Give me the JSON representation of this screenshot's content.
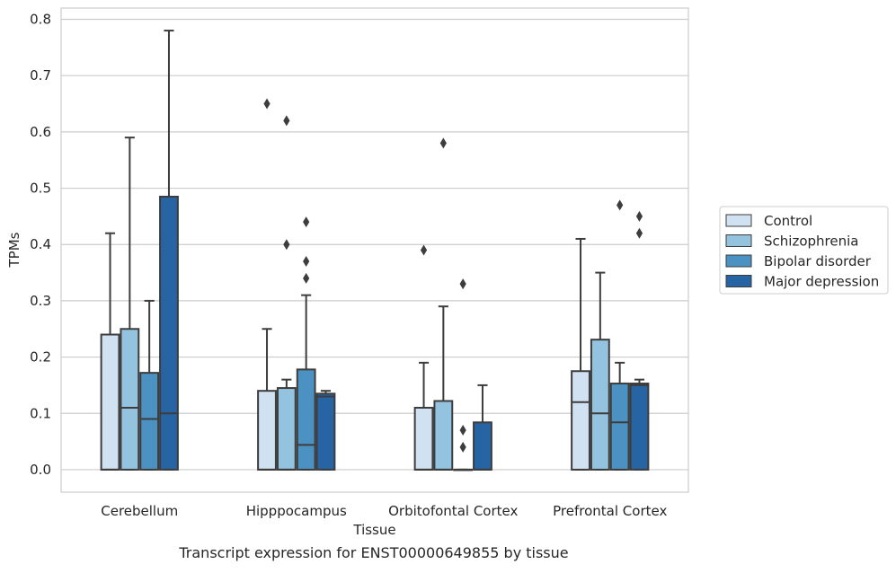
{
  "chart_data": {
    "type": "boxplot",
    "xlabel": "Tissue",
    "ylabel": "TPMs",
    "caption": "Transcript expression for ENST00000649855 by tissue",
    "ylim": [
      -0.04,
      0.82
    ],
    "yticks": [
      "0.0",
      "0.1",
      "0.2",
      "0.3",
      "0.4",
      "0.5",
      "0.6",
      "0.7",
      "0.8"
    ],
    "grid": true,
    "legend_position": "right",
    "categories": [
      "Cerebellum",
      "Hipppocampus",
      "Orbitofontal Cortex",
      "Prefrontal Cortex"
    ],
    "series": [
      {
        "name": "Control",
        "color": "#d0e1f1",
        "boxes": [
          {
            "q1": 0,
            "median": 0,
            "q3": 0.24,
            "whisker_low": 0,
            "whisker_high": 0.42,
            "outliers": []
          },
          {
            "q1": 0,
            "median": 0,
            "q3": 0.14,
            "whisker_low": 0,
            "whisker_high": 0.25,
            "outliers": [
              0.65
            ]
          },
          {
            "q1": 0,
            "median": 0,
            "q3": 0.11,
            "whisker_low": 0,
            "whisker_high": 0.19,
            "outliers": [
              0.39
            ]
          },
          {
            "q1": 0,
            "median": 0.12,
            "q3": 0.175,
            "whisker_low": 0,
            "whisker_high": 0.41,
            "outliers": []
          }
        ]
      },
      {
        "name": "Schizophrenia",
        "color": "#93c3df",
        "boxes": [
          {
            "q1": 0,
            "median": 0.11,
            "q3": 0.25,
            "whisker_low": 0,
            "whisker_high": 0.59,
            "outliers": []
          },
          {
            "q1": 0,
            "median": 0,
            "q3": 0.145,
            "whisker_low": 0,
            "whisker_high": 0.16,
            "outliers": [
              0.62,
              0.4
            ]
          },
          {
            "q1": 0,
            "median": 0,
            "q3": 0.122,
            "whisker_low": 0,
            "whisker_high": 0.29,
            "outliers": [
              0.58
            ]
          },
          {
            "q1": 0,
            "median": 0.1,
            "q3": 0.231,
            "whisker_low": 0,
            "whisker_high": 0.35,
            "outliers": []
          }
        ]
      },
      {
        "name": "Bipolar disorder",
        "color": "#4b91c2",
        "boxes": [
          {
            "q1": 0,
            "median": 0.09,
            "q3": 0.172,
            "whisker_low": 0,
            "whisker_high": 0.3,
            "outliers": []
          },
          {
            "q1": 0,
            "median": 0.044,
            "q3": 0.178,
            "whisker_low": 0,
            "whisker_high": 0.31,
            "outliers": [
              0.44,
              0.37,
              0.34
            ]
          },
          {
            "q1": 0,
            "median": 0,
            "q3": 0,
            "whisker_low": 0,
            "whisker_high": 0,
            "outliers": [
              0.07,
              0.04,
              0.33
            ]
          },
          {
            "q1": 0,
            "median": 0.084,
            "q3": 0.153,
            "whisker_low": 0,
            "whisker_high": 0.19,
            "outliers": [
              0.47
            ]
          }
        ]
      },
      {
        "name": "Major depression",
        "color": "#2664a3",
        "boxes": [
          {
            "q1": 0,
            "median": 0.1,
            "q3": 0.485,
            "whisker_low": 0,
            "whisker_high": 0.78,
            "outliers": []
          },
          {
            "q1": 0,
            "median": 0.13,
            "q3": 0.135,
            "whisker_low": 0,
            "whisker_high": 0.14,
            "outliers": []
          },
          {
            "q1": 0,
            "median": 0,
            "q3": 0.084,
            "whisker_low": 0,
            "whisker_high": 0.15,
            "outliers": []
          },
          {
            "q1": 0,
            "median": 0.15,
            "q3": 0.153,
            "whisker_low": 0,
            "whisker_high": 0.16,
            "outliers": [
              0.45,
              0.42
            ]
          }
        ]
      }
    ]
  }
}
